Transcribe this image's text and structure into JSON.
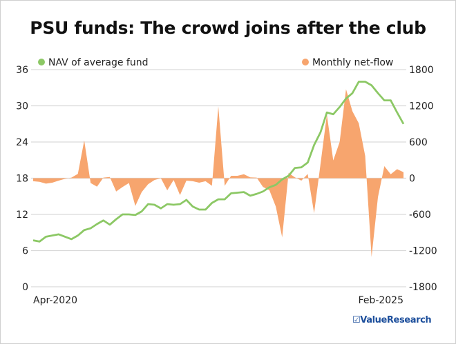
{
  "title": "PSU funds: The crowd joins after the club",
  "logo": {
    "icon": "checkbox-icon",
    "mark": "☑",
    "text": "ValueResearch"
  },
  "chart_data": {
    "type": "line+area",
    "title": "PSU funds: The crowd joins after the club",
    "x_start": "Apr-2020",
    "x_end": "Feb-2025",
    "x_frequency": "monthly",
    "x_tick_labels": [
      "Apr-2020",
      "Feb-2025"
    ],
    "left_axis": {
      "ylim": [
        0,
        36
      ],
      "ticks": [
        0,
        6,
        12,
        18,
        24,
        30,
        36
      ]
    },
    "right_axis": {
      "ylim": [
        -1800,
        1800
      ],
      "ticks": [
        -1800,
        -1200,
        -600,
        0,
        600,
        1200,
        1800
      ]
    },
    "grid": true,
    "legend_placement": "top",
    "series": [
      {
        "name": "NAV of average fund",
        "type": "line",
        "axis": "left",
        "color": "#8cc865",
        "values": [
          7.7,
          7.5,
          8.3,
          8.5,
          8.7,
          8.3,
          7.9,
          8.5,
          9.4,
          9.7,
          10.4,
          11.0,
          10.3,
          11.2,
          12.0,
          12.0,
          11.9,
          12.5,
          13.7,
          13.6,
          13.0,
          13.7,
          13.6,
          13.7,
          14.4,
          13.3,
          12.8,
          12.8,
          13.9,
          14.5,
          14.5,
          15.5,
          15.6,
          15.7,
          15.1,
          15.4,
          15.8,
          16.5,
          16.9,
          17.8,
          18.4,
          19.7,
          19.8,
          20.6,
          23.5,
          25.6,
          28.9,
          28.6,
          29.8,
          31.2,
          32.1,
          34.0,
          34.0,
          33.4,
          32.1,
          30.9,
          30.9,
          28.9,
          27.0
        ]
      },
      {
        "name": "Monthly net-flow",
        "type": "area",
        "axis": "right",
        "color": "#f7a56e",
        "values": [
          -50,
          -60,
          -90,
          -75,
          -40,
          -10,
          10,
          72,
          625,
          -80,
          -140,
          10,
          20,
          -220,
          -145,
          -80,
          -460,
          -230,
          -100,
          -30,
          0,
          -200,
          -30,
          -280,
          -40,
          -50,
          -75,
          -50,
          -125,
          1190,
          -125,
          40,
          40,
          65,
          15,
          10,
          -145,
          -200,
          -470,
          -980,
          85,
          15,
          -40,
          70,
          -580,
          230,
          1055,
          295,
          600,
          1475,
          1110,
          910,
          370,
          -1305,
          -315,
          200,
          65,
          150,
          100
        ]
      }
    ]
  }
}
